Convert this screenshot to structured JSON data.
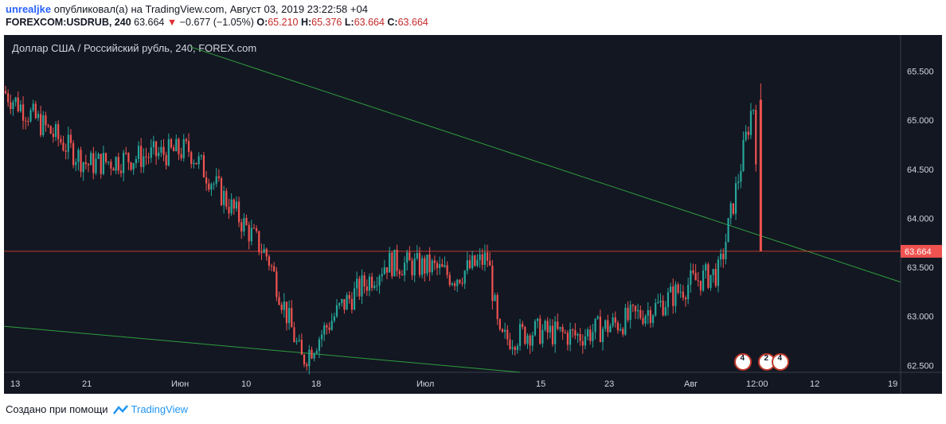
{
  "header": {
    "user": "unrealjke",
    "published_text": "опубликовал(а) на TradingView.com, Август 03, 2019 23:22:58 +04",
    "symbol": "FOREXCOM:USDRUB, 240",
    "price": "63.664",
    "change": "−0.677 (−1.05%)",
    "o_label": "O:",
    "o": "65.210",
    "h_label": "H:",
    "h": "65.376",
    "l_label": "L:",
    "l": "63.664",
    "c_label": "C:",
    "c": "63.664"
  },
  "footer": {
    "created_with": "Создано при помощи",
    "brand": "TradingView"
  },
  "colors": {
    "background": "#131722",
    "up": "#26a69a",
    "down": "#ef5350",
    "trendline": "#2e9e3e",
    "price_line": "#c0392b",
    "axis_text": "#d1d4dc"
  },
  "chart_data": {
    "type": "candlestick",
    "title": "Доллар США / Российский рубль, 240, FOREX.com",
    "y_ticks": [
      "65.500",
      "65.000",
      "64.500",
      "64.000",
      "63.500",
      "63.000",
      "62.500"
    ],
    "y_tick_values": [
      65.5,
      65.0,
      64.5,
      64.0,
      63.5,
      63.0,
      62.5
    ],
    "ylim": [
      62.43,
      65.87
    ],
    "x_ticks": [
      "13",
      "21",
      "Июн",
      "10",
      "18",
      "Июл",
      "15",
      "23",
      "Авг",
      "12:00",
      "12",
      "19"
    ],
    "last_price_label": "63.664",
    "last_price": 63.664,
    "event_badges": [
      "4",
      "2",
      "4"
    ],
    "trend_points": [
      {
        "x": 0.0,
        "y": 65.3
      },
      {
        "x": 0.15,
        "y": 64.55
      },
      {
        "x": 0.33,
        "y": 64.7
      },
      {
        "x": 0.47,
        "y": 63.6
      },
      {
        "x": 0.53,
        "y": 62.55
      },
      {
        "x": 0.6,
        "y": 63.1
      },
      {
        "x": 0.68,
        "y": 63.55
      },
      {
        "x": 0.76,
        "y": 63.5
      },
      {
        "x": 0.8,
        "y": 63.4
      },
      {
        "x": 0.86,
        "y": 63.6
      },
      {
        "x": 0.88,
        "y": 62.75
      },
      {
        "x": 0.94,
        "y": 62.85
      },
      {
        "x": 1.02,
        "y": 62.8
      },
      {
        "x": 1.1,
        "y": 62.95
      },
      {
        "x": 1.16,
        "y": 63.1
      },
      {
        "x": 1.22,
        "y": 63.35
      },
      {
        "x": 1.27,
        "y": 63.45
      },
      {
        "x": 1.3,
        "y": 64.3
      },
      {
        "x": 1.33,
        "y": 65.2
      },
      {
        "x": 1.345,
        "y": 63.66
      }
    ],
    "trendlines": [
      {
        "from": {
          "t": 0.33,
          "v": 65.75
        },
        "to": {
          "t": 1.59,
          "v": 63.35
        }
      },
      {
        "from": {
          "t": 0.0,
          "v": 62.9
        },
        "to": {
          "t": 0.915,
          "v": 62.43
        }
      }
    ]
  }
}
